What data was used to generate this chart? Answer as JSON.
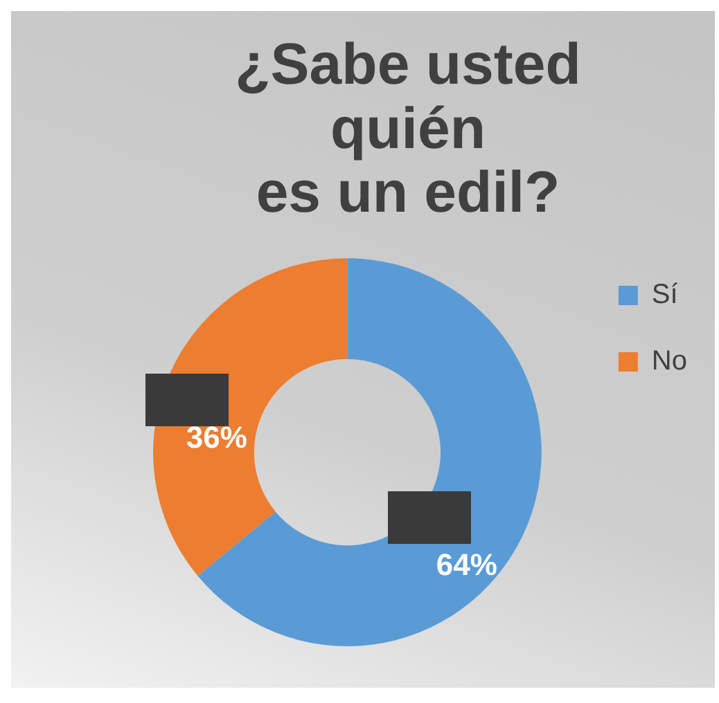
{
  "chart_data": {
    "type": "donut",
    "title": "¿Sabe usted\nquién\nes un edil?",
    "categories": [
      "Sí",
      "No"
    ],
    "values": [
      64,
      36
    ],
    "colors": [
      "#5b9bd5",
      "#ed7d31"
    ],
    "value_labels": [
      "64%",
      "36%"
    ],
    "legend": "right"
  }
}
